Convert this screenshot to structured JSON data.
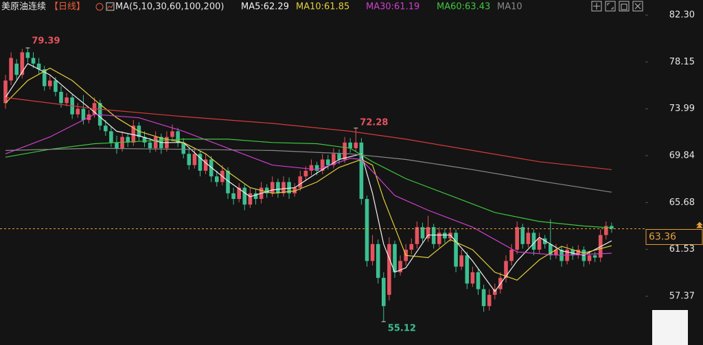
{
  "chart_data": {
    "type": "candlestick",
    "header": {
      "symbol": "美原油连续",
      "period": "【日线】",
      "indicator": "MA(5,10,30,60,100,200)"
    },
    "up_color": "#e5535f",
    "down_color": "#3cbf91",
    "open": [
      74.5,
      76.5,
      78,
      77,
      79,
      78.5,
      78,
      77.5,
      76,
      76.5,
      75.5,
      74.5,
      75,
      73.5,
      74,
      73,
      73.5,
      74.5,
      72.5,
      72,
      71,
      70.5,
      71.5,
      71,
      72.5,
      71.5,
      71,
      70.5,
      71.5,
      70.5,
      71.5,
      72,
      71,
      70,
      69,
      70,
      68.5,
      69.5,
      68,
      67.5,
      68.5,
      66.5,
      66,
      67,
      65.5,
      66.5,
      66,
      67,
      66.5,
      67.5,
      66.5,
      67.5,
      66.5,
      67,
      68,
      68.5,
      69,
      68.5,
      69.5,
      69,
      70,
      69.5,
      71,
      70.5,
      71,
      66,
      60.5,
      62,
      59,
      57.5,
      62,
      59.5,
      60.5,
      61.5,
      62,
      63.5,
      62.5,
      63.5,
      62,
      63,
      62.5,
      63,
      60,
      61,
      58.5,
      59.5,
      58,
      56.5,
      57.5,
      58,
      59,
      60.5,
      61.5,
      63.5,
      62,
      63,
      61.5,
      62.5,
      62,
      61,
      61.5,
      60.5,
      61.5,
      61,
      61.5,
      60.5,
      61,
      60.8,
      62.8,
      63.6
    ],
    "high": [
      77.0,
      79.0,
      78.4,
      79.3,
      79.39,
      79.0,
      78.5,
      77.8,
      77.0,
      76.8,
      76.0,
      75.4,
      75.3,
      74.5,
      75.2,
      73.9,
      75.0,
      74.8,
      73.0,
      72.4,
      71.6,
      72.0,
      71.8,
      73.0,
      72.8,
      72.0,
      71.4,
      72.0,
      71.8,
      72.0,
      72.6,
      72.3,
      71.4,
      70.5,
      70.4,
      70.3,
      70.0,
      69.8,
      68.5,
      69.0,
      68.8,
      67.0,
      67.4,
      67.3,
      67.0,
      66.9,
      67.5,
      67.3,
      68.0,
      67.8,
      68.0,
      67.9,
      67.4,
      68.5,
      68.9,
      69.5,
      69.3,
      70.0,
      69.9,
      70.5,
      70.4,
      71.5,
      71.4,
      72.28,
      71.4,
      66.3,
      62.8,
      62.4,
      59.5,
      62.6,
      62.3,
      61.0,
      62.0,
      62.5,
      64.0,
      63.9,
      64.5,
      63.8,
      63.5,
      63.4,
      63.5,
      63.3,
      61.5,
      61.3,
      60.0,
      59.8,
      58.4,
      58.0,
      58.5,
      59.5,
      61.0,
      62.0,
      64.0,
      63.8,
      63.5,
      63.3,
      63.0,
      62.8,
      64.2,
      62.0,
      61.8,
      62.0,
      61.8,
      61.9,
      61.8,
      61.4,
      61.3,
      63.3,
      64.0,
      63.9
    ],
    "low": [
      74.0,
      76.1,
      76.6,
      76.7,
      78.1,
      77.6,
      77.1,
      75.6,
      75.7,
      75.1,
      74.1,
      74.2,
      73.1,
      73.2,
      72.6,
      72.7,
      73.2,
      72.1,
      71.6,
      70.6,
      70.0,
      70.2,
      70.6,
      70.7,
      71.1,
      70.6,
      70.1,
      70.2,
      70.0,
      70.2,
      71.1,
      70.6,
      69.6,
      68.6,
      68.7,
      68.0,
      68.2,
      67.5,
      67.1,
      67.2,
      66.0,
      65.5,
      65.7,
      65.0,
      65.2,
      65.5,
      65.6,
      66.1,
      66.2,
      66.1,
      66.2,
      66.0,
      66.2,
      66.7,
      67.6,
      68.1,
      68.1,
      68.2,
      68.6,
      68.7,
      69.1,
      69.2,
      70.1,
      70.2,
      65.5,
      60.0,
      60.1,
      58.5,
      55.12,
      57.0,
      59.0,
      59.2,
      60.1,
      61.1,
      61.6,
      62.1,
      62.2,
      61.6,
      61.7,
      62.1,
      62.2,
      59.5,
      59.7,
      58.0,
      58.2,
      57.5,
      56.0,
      56.1,
      57.1,
      57.6,
      58.6,
      60.1,
      61.1,
      61.6,
      61.7,
      61.0,
      61.2,
      61.6,
      60.6,
      60.7,
      60.0,
      60.2,
      60.6,
      60.7,
      60.0,
      60.2,
      60.4,
      60.4,
      62.4,
      63.0
    ],
    "close": [
      76.5,
      78.5,
      77,
      79,
      78.5,
      78,
      77.5,
      76,
      76.5,
      75.5,
      74.5,
      75,
      73.5,
      74,
      73,
      73.5,
      74.5,
      72.5,
      72,
      71,
      70.5,
      71.5,
      71,
      72.5,
      71.5,
      71,
      70.5,
      71.5,
      70.5,
      71.5,
      72,
      71,
      70,
      69,
      70,
      68.5,
      69.5,
      68,
      67.5,
      68.5,
      66.5,
      66,
      67,
      65.5,
      66.5,
      66,
      67,
      66.5,
      67.5,
      66.5,
      67.5,
      66.5,
      67,
      68,
      68.5,
      69,
      68.5,
      69.5,
      69,
      70,
      69.5,
      71,
      70.5,
      71,
      66,
      60.5,
      62,
      59,
      56.5,
      62,
      59.5,
      60.5,
      61.5,
      62,
      63.5,
      62.5,
      63.5,
      62,
      63,
      62.5,
      63,
      60,
      61,
      58.5,
      59.5,
      58,
      56.5,
      57.5,
      58,
      59,
      60.5,
      61.5,
      63.5,
      62,
      63,
      61.5,
      62.5,
      62,
      61,
      61.5,
      60.5,
      61.5,
      61,
      61.5,
      60.5,
      61,
      60.8,
      62.8,
      63.6,
      63.36
    ],
    "series": [
      {
        "name": "MA5:62.29",
        "color": "#f2f2f2",
        "x": [
          0,
          4,
          8,
          12,
          16,
          20,
          24,
          28,
          32,
          36,
          40,
          44,
          48,
          52,
          56,
          60,
          64,
          66,
          68,
          70,
          72,
          76,
          80,
          84,
          88,
          92,
          96,
          100,
          104,
          109
        ],
        "values": [
          75.0,
          78.0,
          77.0,
          75.3,
          73.7,
          72.0,
          71.6,
          71.0,
          71.0,
          69.2,
          67.6,
          66.2,
          66.8,
          67.0,
          68.3,
          69.5,
          70.0,
          66.5,
          62.0,
          59.5,
          59.9,
          62.8,
          62.8,
          60.5,
          57.8,
          60.5,
          62.6,
          61.4,
          61.0,
          62.29
        ]
      },
      {
        "name": "MA10:61.85",
        "color": "#e3d23b",
        "x": [
          0,
          4,
          8,
          12,
          16,
          20,
          24,
          28,
          32,
          36,
          40,
          44,
          48,
          52,
          56,
          60,
          64,
          66,
          68,
          70,
          72,
          76,
          80,
          84,
          88,
          92,
          96,
          100,
          104,
          109
        ],
        "values": [
          74.5,
          76.5,
          77.6,
          76.5,
          74.8,
          73.2,
          72.0,
          71.4,
          71.0,
          70.0,
          68.4,
          67.0,
          66.5,
          66.7,
          67.5,
          68.8,
          69.5,
          69.0,
          66.0,
          63.5,
          61.0,
          60.8,
          62.4,
          61.5,
          59.5,
          58.8,
          60.6,
          61.8,
          61.2,
          61.85
        ]
      },
      {
        "name": "MA30:61.19",
        "color": "#d13fd1",
        "x": [
          0,
          8,
          16,
          24,
          32,
          40,
          48,
          56,
          62,
          64,
          70,
          76,
          84,
          92,
          100,
          109
        ],
        "values": [
          70.0,
          71.5,
          73.5,
          73.2,
          72.0,
          70.5,
          69.0,
          68.6,
          69.6,
          69.5,
          66.3,
          65.0,
          63.5,
          61.3,
          61.0,
          61.19
        ]
      },
      {
        "name": "MA60:63.43",
        "color": "#3ec83e",
        "x": [
          0,
          8,
          16,
          24,
          32,
          40,
          48,
          56,
          62,
          66,
          72,
          80,
          88,
          96,
          104,
          109
        ],
        "values": [
          69.7,
          70.4,
          70.9,
          71.1,
          71.3,
          71.3,
          71.0,
          70.9,
          70.5,
          69.3,
          67.8,
          66.3,
          64.8,
          64.0,
          63.6,
          63.43
        ]
      },
      {
        "name": "MA10",
        "color": "#8a8a8a",
        "x": [
          0,
          16,
          32,
          48,
          62,
          72,
          84,
          96,
          109
        ],
        "values": [
          70.3,
          70.5,
          70.4,
          70.3,
          70.0,
          69.5,
          68.6,
          67.6,
          66.6
        ]
      },
      {
        "color": "#d93a3a",
        "x": [
          0,
          16,
          32,
          48,
          62,
          72,
          84,
          96,
          109
        ],
        "values": [
          75.0,
          74.0,
          73.3,
          72.7,
          72.0,
          71.3,
          70.3,
          69.3,
          68.6
        ]
      }
    ],
    "ylim": [
      53.05,
      83.64
    ],
    "yticks": [
      {
        "value": 82.3,
        "label": "82.30"
      },
      78.15,
      73.99,
      69.84,
      65.68,
      61.53,
      57.37
    ],
    "grid": false
  }
}
